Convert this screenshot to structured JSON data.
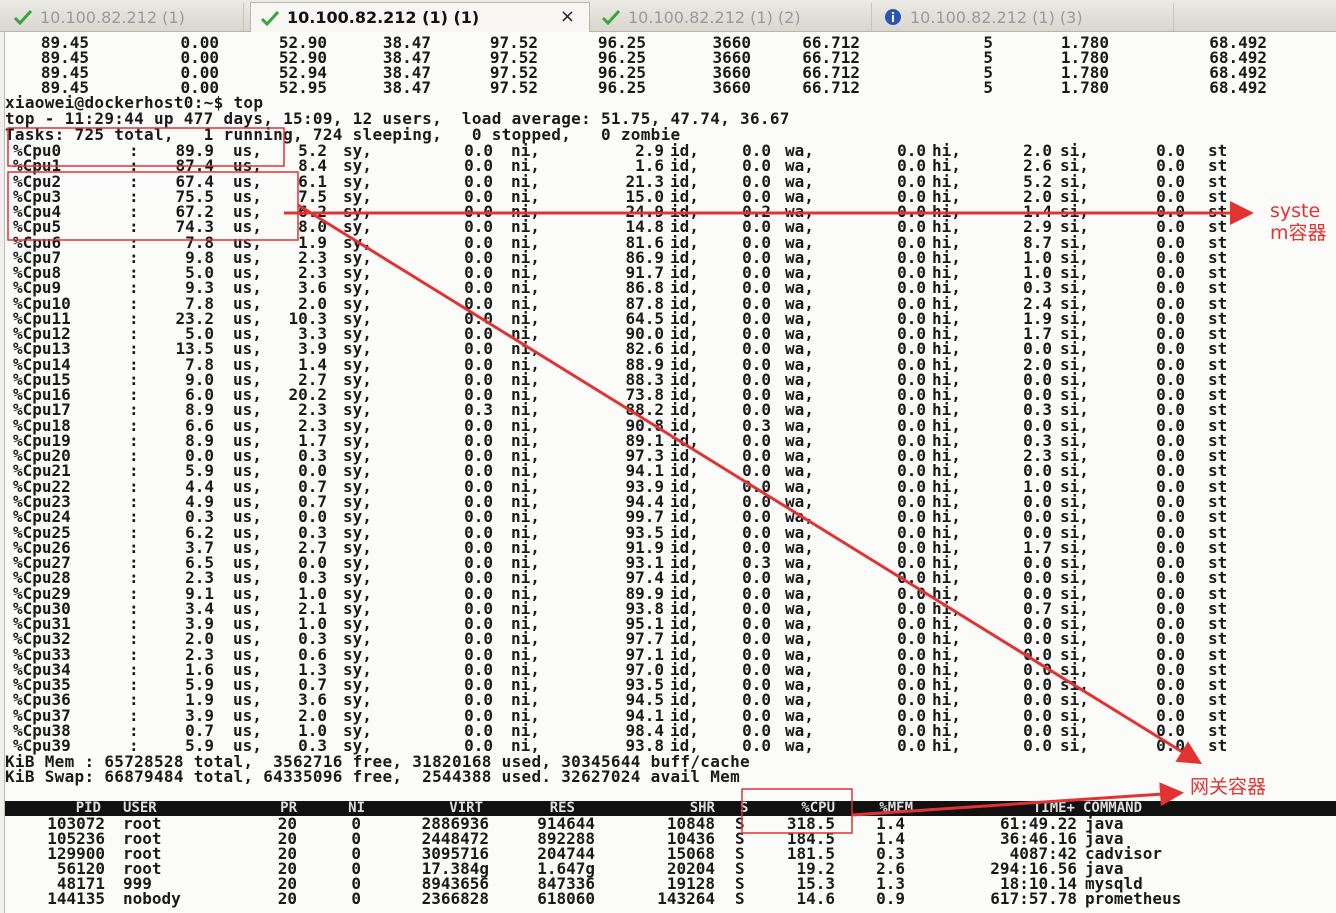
{
  "tabs": [
    {
      "label": "10.100.82.212 (1)",
      "icon": "check-icon",
      "active": false
    },
    {
      "label": "10.100.82.212 (1) (1)",
      "icon": "check-icon",
      "active": true
    },
    {
      "label": "10.100.82.212 (1) (2)",
      "icon": "check-icon",
      "active": false
    },
    {
      "label": "10.100.82.212 (1) (3)",
      "icon": "info-icon",
      "active": false
    }
  ],
  "close_glyph": "×",
  "colors": {
    "check": "#3aa33a",
    "info": "#2a55b5",
    "annotation": "#e23333"
  },
  "prev_rows": [
    [
      "89.45",
      "0.00",
      "52.90",
      "38.47",
      "97.52",
      "96.25",
      "3660",
      "66.712",
      "5",
      "1.780",
      "68.492"
    ],
    [
      "89.45",
      "0.00",
      "52.90",
      "38.47",
      "97.52",
      "96.25",
      "3660",
      "66.712",
      "5",
      "1.780",
      "68.492"
    ],
    [
      "89.45",
      "0.00",
      "52.94",
      "38.47",
      "97.52",
      "96.25",
      "3660",
      "66.712",
      "5",
      "1.780",
      "68.492"
    ],
    [
      "89.45",
      "0.00",
      "52.95",
      "38.47",
      "97.52",
      "96.25",
      "3660",
      "66.712",
      "5",
      "1.780",
      "68.492"
    ]
  ],
  "prompt": "xiaowei@dockerhost0:~$ top",
  "top_line": "top - 11:29:44 up 477 days, 15:09, 12 users,  load average: 51.75, 47.74, 36.67",
  "tasks_line": "Tasks: 725 total,   1 running, 724 sleeping,   0 stopped,   0 zombie",
  "cpu_rows": [
    [
      "%Cpu0",
      ":",
      "89.9",
      "us,",
      "5.2",
      "sy,",
      "0.0",
      "ni,",
      "2.9",
      "id,",
      "0.0",
      "wa,",
      "0.0",
      "hi,",
      "2.0",
      "si,",
      "0.0",
      "st"
    ],
    [
      "%Cpu1",
      ":",
      "87.4",
      "us,",
      "8.4",
      "sy,",
      "0.0",
      "ni,",
      "1.6",
      "id,",
      "0.0",
      "wa,",
      "0.0",
      "hi,",
      "2.6",
      "si,",
      "0.0",
      "st"
    ],
    [
      "%Cpu2",
      ":",
      "67.4",
      "us,",
      "6.1",
      "sy,",
      "0.0",
      "ni,",
      "21.3",
      "id,",
      "0.0",
      "wa,",
      "0.0",
      "hi,",
      "5.2",
      "si,",
      "0.0",
      "st"
    ],
    [
      "%Cpu3",
      ":",
      "75.5",
      "us,",
      "7.5",
      "sy,",
      "0.0",
      "ni,",
      "15.0",
      "id,",
      "0.0",
      "wa,",
      "0.0",
      "hi,",
      "2.0",
      "si,",
      "0.0",
      "st"
    ],
    [
      "%Cpu4",
      ":",
      "67.2",
      "us,",
      "6.2",
      "sy,",
      "0.0",
      "ni,",
      "24.9",
      "id,",
      "0.2",
      "wa,",
      "0.0",
      "hi,",
      "1.4",
      "si,",
      "0.0",
      "st"
    ],
    [
      "%Cpu5",
      ":",
      "74.3",
      "us,",
      "8.0",
      "sy,",
      "0.0",
      "ni,",
      "14.8",
      "id,",
      "0.0",
      "wa,",
      "0.0",
      "hi,",
      "2.9",
      "si,",
      "0.0",
      "st"
    ],
    [
      "%Cpu6",
      ":",
      "7.8",
      "us,",
      "1.9",
      "sy,",
      "0.0",
      "ni,",
      "81.6",
      "id,",
      "0.0",
      "wa,",
      "0.0",
      "hi,",
      "8.7",
      "si,",
      "0.0",
      "st"
    ],
    [
      "%Cpu7",
      ":",
      "9.8",
      "us,",
      "2.3",
      "sy,",
      "0.0",
      "ni,",
      "86.9",
      "id,",
      "0.0",
      "wa,",
      "0.0",
      "hi,",
      "1.0",
      "si,",
      "0.0",
      "st"
    ],
    [
      "%Cpu8",
      ":",
      "5.0",
      "us,",
      "2.3",
      "sy,",
      "0.0",
      "ni,",
      "91.7",
      "id,",
      "0.0",
      "wa,",
      "0.0",
      "hi,",
      "1.0",
      "si,",
      "0.0",
      "st"
    ],
    [
      "%Cpu9",
      ":",
      "9.3",
      "us,",
      "3.6",
      "sy,",
      "0.0",
      "ni,",
      "86.8",
      "id,",
      "0.0",
      "wa,",
      "0.0",
      "hi,",
      "0.3",
      "si,",
      "0.0",
      "st"
    ],
    [
      "%Cpu10",
      ":",
      "7.8",
      "us,",
      "2.0",
      "sy,",
      "0.0",
      "ni,",
      "87.8",
      "id,",
      "0.0",
      "wa,",
      "0.0",
      "hi,",
      "2.4",
      "si,",
      "0.0",
      "st"
    ],
    [
      "%Cpu11",
      ":",
      "23.2",
      "us,",
      "10.3",
      "sy,",
      "0.0",
      "ni,",
      "64.5",
      "id,",
      "0.0",
      "wa,",
      "0.0",
      "hi,",
      "1.9",
      "si,",
      "0.0",
      "st"
    ],
    [
      "%Cpu12",
      ":",
      "5.0",
      "us,",
      "3.3",
      "sy,",
      "0.0",
      "ni,",
      "90.0",
      "id,",
      "0.0",
      "wa,",
      "0.0",
      "hi,",
      "1.7",
      "si,",
      "0.0",
      "st"
    ],
    [
      "%Cpu13",
      ":",
      "13.5",
      "us,",
      "3.9",
      "sy,",
      "0.0",
      "ni,",
      "82.6",
      "id,",
      "0.0",
      "wa,",
      "0.0",
      "hi,",
      "0.0",
      "si,",
      "0.0",
      "st"
    ],
    [
      "%Cpu14",
      ":",
      "7.8",
      "us,",
      "1.4",
      "sy,",
      "0.0",
      "ni,",
      "88.9",
      "id,",
      "0.0",
      "wa,",
      "0.0",
      "hi,",
      "2.0",
      "si,",
      "0.0",
      "st"
    ],
    [
      "%Cpu15",
      ":",
      "9.0",
      "us,",
      "2.7",
      "sy,",
      "0.0",
      "ni,",
      "88.3",
      "id,",
      "0.0",
      "wa,",
      "0.0",
      "hi,",
      "0.0",
      "si,",
      "0.0",
      "st"
    ],
    [
      "%Cpu16",
      ":",
      "6.0",
      "us,",
      "20.2",
      "sy,",
      "0.0",
      "ni,",
      "73.8",
      "id,",
      "0.0",
      "wa,",
      "0.0",
      "hi,",
      "0.0",
      "si,",
      "0.0",
      "st"
    ],
    [
      "%Cpu17",
      ":",
      "8.9",
      "us,",
      "2.3",
      "sy,",
      "0.3",
      "ni,",
      "88.2",
      "id,",
      "0.0",
      "wa,",
      "0.0",
      "hi,",
      "0.3",
      "si,",
      "0.0",
      "st"
    ],
    [
      "%Cpu18",
      ":",
      "6.6",
      "us,",
      "2.3",
      "sy,",
      "0.0",
      "ni,",
      "90.8",
      "id,",
      "0.3",
      "wa,",
      "0.0",
      "hi,",
      "0.0",
      "si,",
      "0.0",
      "st"
    ],
    [
      "%Cpu19",
      ":",
      "8.9",
      "us,",
      "1.7",
      "sy,",
      "0.0",
      "ni,",
      "89.1",
      "id,",
      "0.0",
      "wa,",
      "0.0",
      "hi,",
      "0.3",
      "si,",
      "0.0",
      "st"
    ],
    [
      "%Cpu20",
      ":",
      "0.0",
      "us,",
      "0.3",
      "sy,",
      "0.0",
      "ni,",
      "97.3",
      "id,",
      "0.0",
      "wa,",
      "0.0",
      "hi,",
      "2.3",
      "si,",
      "0.0",
      "st"
    ],
    [
      "%Cpu21",
      ":",
      "5.9",
      "us,",
      "0.0",
      "sy,",
      "0.0",
      "ni,",
      "94.1",
      "id,",
      "0.0",
      "wa,",
      "0.0",
      "hi,",
      "0.0",
      "si,",
      "0.0",
      "st"
    ],
    [
      "%Cpu22",
      ":",
      "4.4",
      "us,",
      "0.7",
      "sy,",
      "0.0",
      "ni,",
      "93.9",
      "id,",
      "0.0",
      "wa,",
      "0.0",
      "hi,",
      "1.0",
      "si,",
      "0.0",
      "st"
    ],
    [
      "%Cpu23",
      ":",
      "4.9",
      "us,",
      "0.7",
      "sy,",
      "0.0",
      "ni,",
      "94.4",
      "id,",
      "0.0",
      "wa,",
      "0.0",
      "hi,",
      "0.0",
      "si,",
      "0.0",
      "st"
    ],
    [
      "%Cpu24",
      ":",
      "0.3",
      "us,",
      "0.0",
      "sy,",
      "0.0",
      "ni,",
      "99.7",
      "id,",
      "0.0",
      "wa,",
      "0.0",
      "hi,",
      "0.0",
      "si,",
      "0.0",
      "st"
    ],
    [
      "%Cpu25",
      ":",
      "6.2",
      "us,",
      "0.3",
      "sy,",
      "0.0",
      "ni,",
      "93.5",
      "id,",
      "0.0",
      "wa,",
      "0.0",
      "hi,",
      "0.0",
      "si,",
      "0.0",
      "st"
    ],
    [
      "%Cpu26",
      ":",
      "3.7",
      "us,",
      "2.7",
      "sy,",
      "0.0",
      "ni,",
      "91.9",
      "id,",
      "0.0",
      "wa,",
      "0.0",
      "hi,",
      "1.7",
      "si,",
      "0.0",
      "st"
    ],
    [
      "%Cpu27",
      ":",
      "6.5",
      "us,",
      "0.0",
      "sy,",
      "0.0",
      "ni,",
      "93.1",
      "id,",
      "0.3",
      "wa,",
      "0.0",
      "hi,",
      "0.0",
      "si,",
      "0.0",
      "st"
    ],
    [
      "%Cpu28",
      ":",
      "2.3",
      "us,",
      "0.3",
      "sy,",
      "0.0",
      "ni,",
      "97.4",
      "id,",
      "0.0",
      "wa,",
      "0.0",
      "hi,",
      "0.0",
      "si,",
      "0.0",
      "st"
    ],
    [
      "%Cpu29",
      ":",
      "9.1",
      "us,",
      "1.0",
      "sy,",
      "0.0",
      "ni,",
      "89.9",
      "id,",
      "0.0",
      "wa,",
      "0.0",
      "hi,",
      "0.0",
      "si,",
      "0.0",
      "st"
    ],
    [
      "%Cpu30",
      ":",
      "3.4",
      "us,",
      "2.1",
      "sy,",
      "0.0",
      "ni,",
      "93.8",
      "id,",
      "0.0",
      "wa,",
      "0.0",
      "hi,",
      "0.7",
      "si,",
      "0.0",
      "st"
    ],
    [
      "%Cpu31",
      ":",
      "3.9",
      "us,",
      "1.0",
      "sy,",
      "0.0",
      "ni,",
      "95.1",
      "id,",
      "0.0",
      "wa,",
      "0.0",
      "hi,",
      "0.0",
      "si,",
      "0.0",
      "st"
    ],
    [
      "%Cpu32",
      ":",
      "2.0",
      "us,",
      "0.3",
      "sy,",
      "0.0",
      "ni,",
      "97.7",
      "id,",
      "0.0",
      "wa,",
      "0.0",
      "hi,",
      "0.0",
      "si,",
      "0.0",
      "st"
    ],
    [
      "%Cpu33",
      ":",
      "2.3",
      "us,",
      "0.6",
      "sy,",
      "0.0",
      "ni,",
      "97.1",
      "id,",
      "0.0",
      "wa,",
      "0.0",
      "hi,",
      "0.0",
      "si,",
      "0.0",
      "st"
    ],
    [
      "%Cpu34",
      ":",
      "1.6",
      "us,",
      "1.3",
      "sy,",
      "0.0",
      "ni,",
      "97.0",
      "id,",
      "0.0",
      "wa,",
      "0.0",
      "hi,",
      "0.0",
      "si,",
      "0.0",
      "st"
    ],
    [
      "%Cpu35",
      ":",
      "5.9",
      "us,",
      "0.7",
      "sy,",
      "0.0",
      "ni,",
      "93.5",
      "id,",
      "0.0",
      "wa,",
      "0.0",
      "hi,",
      "0.0",
      "si,",
      "0.0",
      "st"
    ],
    [
      "%Cpu36",
      ":",
      "1.9",
      "us,",
      "3.6",
      "sy,",
      "0.0",
      "ni,",
      "94.5",
      "id,",
      "0.0",
      "wa,",
      "0.0",
      "hi,",
      "0.0",
      "si,",
      "0.0",
      "st"
    ],
    [
      "%Cpu37",
      ":",
      "3.9",
      "us,",
      "2.0",
      "sy,",
      "0.0",
      "ni,",
      "94.1",
      "id,",
      "0.0",
      "wa,",
      "0.0",
      "hi,",
      "0.0",
      "si,",
      "0.0",
      "st"
    ],
    [
      "%Cpu38",
      ":",
      "0.7",
      "us,",
      "1.0",
      "sy,",
      "0.0",
      "ni,",
      "98.4",
      "id,",
      "0.0",
      "wa,",
      "0.0",
      "hi,",
      "0.0",
      "si,",
      "0.0",
      "st"
    ],
    [
      "%Cpu39",
      ":",
      "5.9",
      "us,",
      "0.3",
      "sy,",
      "0.0",
      "ni,",
      "93.8",
      "id,",
      "0.0",
      "wa,",
      "0.0",
      "hi,",
      "0.0",
      "si,",
      "0.0",
      "st"
    ]
  ],
  "mem_line": "KiB Mem : 65728528 total,  3562716 free, 31820168 used, 30345644 buff/cache",
  "swap_line": "KiB Swap: 66879484 total, 64335096 free,  2544388 used. 32627024 avail Mem",
  "proc_header": [
    "PID",
    "USER",
    "PR",
    "NI",
    "VIRT",
    "RES",
    "SHR",
    "S",
    "%CPU",
    "%MEM",
    "TIME+",
    "COMMAND"
  ],
  "processes": [
    [
      "103072",
      "root",
      "20",
      "0",
      "2886936",
      "914644",
      "10848",
      "S",
      "318.5",
      "1.4",
      "61:49.22",
      "java"
    ],
    [
      "105236",
      "root",
      "20",
      "0",
      "2448472",
      "892288",
      "10436",
      "S",
      "184.5",
      "1.4",
      "36:46.16",
      "java"
    ],
    [
      "129900",
      "root",
      "20",
      "0",
      "3095716",
      "204744",
      "15068",
      "S",
      "181.5",
      "0.3",
      "4087:42",
      "cadvisor"
    ],
    [
      "56120",
      "root",
      "20",
      "0",
      "17.384g",
      "1.647g",
      "20204",
      "S",
      "19.2",
      "2.6",
      "294:16.56",
      "java"
    ],
    [
      "48171",
      "999",
      "20",
      "0",
      "8943656",
      "847336",
      "19128",
      "S",
      "15.3",
      "1.3",
      "18:10.14",
      "mysqld"
    ],
    [
      "144135",
      "nobody",
      "20",
      "0",
      "2366828",
      "618060",
      "143264",
      "S",
      "14.6",
      "0.9",
      "617:57.78",
      "prometheus"
    ]
  ],
  "annotations": {
    "system_label": "system容器",
    "gateway_label": "网关容器"
  }
}
